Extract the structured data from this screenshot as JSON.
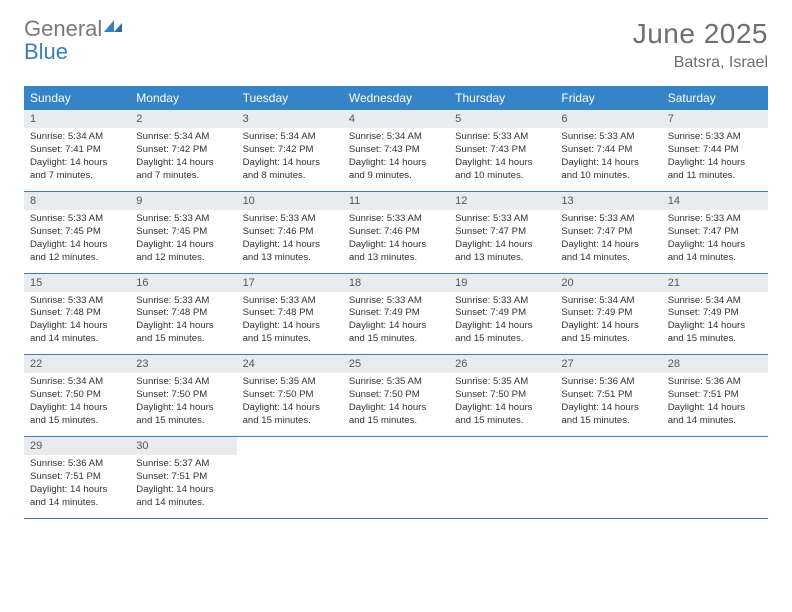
{
  "brand": {
    "text1": "General",
    "text2": "Blue",
    "gray": "#7a7a7a",
    "blue": "#3b7fb8"
  },
  "title": "June 2025",
  "location": "Batsra, Israel",
  "colors": {
    "header_bg": "#3484c7",
    "daynum_bg": "#e9ecef",
    "rule": "#3b7fb8",
    "text": "#333333",
    "muted": "#6e6e6e"
  },
  "fonts": {
    "title_pt": 28,
    "location_pt": 16,
    "dow_pt": 12,
    "daynum_pt": 11,
    "body_pt": 9.6
  },
  "dow": [
    "Sunday",
    "Monday",
    "Tuesday",
    "Wednesday",
    "Thursday",
    "Friday",
    "Saturday"
  ],
  "days": [
    {
      "n": 1,
      "sunrise": "5:34 AM",
      "sunset": "7:41 PM",
      "daylight": "14 hours and 7 minutes."
    },
    {
      "n": 2,
      "sunrise": "5:34 AM",
      "sunset": "7:42 PM",
      "daylight": "14 hours and 7 minutes."
    },
    {
      "n": 3,
      "sunrise": "5:34 AM",
      "sunset": "7:42 PM",
      "daylight": "14 hours and 8 minutes."
    },
    {
      "n": 4,
      "sunrise": "5:34 AM",
      "sunset": "7:43 PM",
      "daylight": "14 hours and 9 minutes."
    },
    {
      "n": 5,
      "sunrise": "5:33 AM",
      "sunset": "7:43 PM",
      "daylight": "14 hours and 10 minutes."
    },
    {
      "n": 6,
      "sunrise": "5:33 AM",
      "sunset": "7:44 PM",
      "daylight": "14 hours and 10 minutes."
    },
    {
      "n": 7,
      "sunrise": "5:33 AM",
      "sunset": "7:44 PM",
      "daylight": "14 hours and 11 minutes."
    },
    {
      "n": 8,
      "sunrise": "5:33 AM",
      "sunset": "7:45 PM",
      "daylight": "14 hours and 12 minutes."
    },
    {
      "n": 9,
      "sunrise": "5:33 AM",
      "sunset": "7:45 PM",
      "daylight": "14 hours and 12 minutes."
    },
    {
      "n": 10,
      "sunrise": "5:33 AM",
      "sunset": "7:46 PM",
      "daylight": "14 hours and 13 minutes."
    },
    {
      "n": 11,
      "sunrise": "5:33 AM",
      "sunset": "7:46 PM",
      "daylight": "14 hours and 13 minutes."
    },
    {
      "n": 12,
      "sunrise": "5:33 AM",
      "sunset": "7:47 PM",
      "daylight": "14 hours and 13 minutes."
    },
    {
      "n": 13,
      "sunrise": "5:33 AM",
      "sunset": "7:47 PM",
      "daylight": "14 hours and 14 minutes."
    },
    {
      "n": 14,
      "sunrise": "5:33 AM",
      "sunset": "7:47 PM",
      "daylight": "14 hours and 14 minutes."
    },
    {
      "n": 15,
      "sunrise": "5:33 AM",
      "sunset": "7:48 PM",
      "daylight": "14 hours and 14 minutes."
    },
    {
      "n": 16,
      "sunrise": "5:33 AM",
      "sunset": "7:48 PM",
      "daylight": "14 hours and 15 minutes."
    },
    {
      "n": 17,
      "sunrise": "5:33 AM",
      "sunset": "7:48 PM",
      "daylight": "14 hours and 15 minutes."
    },
    {
      "n": 18,
      "sunrise": "5:33 AM",
      "sunset": "7:49 PM",
      "daylight": "14 hours and 15 minutes."
    },
    {
      "n": 19,
      "sunrise": "5:33 AM",
      "sunset": "7:49 PM",
      "daylight": "14 hours and 15 minutes."
    },
    {
      "n": 20,
      "sunrise": "5:34 AM",
      "sunset": "7:49 PM",
      "daylight": "14 hours and 15 minutes."
    },
    {
      "n": 21,
      "sunrise": "5:34 AM",
      "sunset": "7:49 PM",
      "daylight": "14 hours and 15 minutes."
    },
    {
      "n": 22,
      "sunrise": "5:34 AM",
      "sunset": "7:50 PM",
      "daylight": "14 hours and 15 minutes."
    },
    {
      "n": 23,
      "sunrise": "5:34 AM",
      "sunset": "7:50 PM",
      "daylight": "14 hours and 15 minutes."
    },
    {
      "n": 24,
      "sunrise": "5:35 AM",
      "sunset": "7:50 PM",
      "daylight": "14 hours and 15 minutes."
    },
    {
      "n": 25,
      "sunrise": "5:35 AM",
      "sunset": "7:50 PM",
      "daylight": "14 hours and 15 minutes."
    },
    {
      "n": 26,
      "sunrise": "5:35 AM",
      "sunset": "7:50 PM",
      "daylight": "14 hours and 15 minutes."
    },
    {
      "n": 27,
      "sunrise": "5:36 AM",
      "sunset": "7:51 PM",
      "daylight": "14 hours and 15 minutes."
    },
    {
      "n": 28,
      "sunrise": "5:36 AM",
      "sunset": "7:51 PM",
      "daylight": "14 hours and 14 minutes."
    },
    {
      "n": 29,
      "sunrise": "5:36 AM",
      "sunset": "7:51 PM",
      "daylight": "14 hours and 14 minutes."
    },
    {
      "n": 30,
      "sunrise": "5:37 AM",
      "sunset": "7:51 PM",
      "daylight": "14 hours and 14 minutes."
    }
  ],
  "labels": {
    "sunrise": "Sunrise:",
    "sunset": "Sunset:",
    "daylight": "Daylight:"
  },
  "layout": {
    "first_weekday_index": 0,
    "weeks": 5,
    "cols": 7
  }
}
